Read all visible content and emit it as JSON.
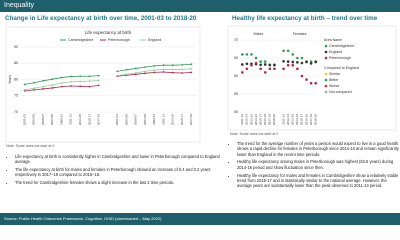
{
  "header": {
    "title": "Inequality"
  },
  "left": {
    "title": "Change in Life expectancy at birth over time, 2001-03 to 2018-20",
    "note": "Note: Scale does not start at 0",
    "bullets": [
      "Life expectancy at birth is consistently higher in Cambridgeshire and lower in Peterborough compared to England average.",
      "The life expectancy at birth for males and females in Peterborough showed an increase of 0.4 and 0.2 years respectively in 2017–19 compared to 2016–18.",
      "The trend for Cambridgeshire females shows a slight increase in the last 2 time periods."
    ]
  },
  "right": {
    "title": "Healthy life expectancy at birth – trend over time",
    "note": "Note: Scale does not start at 0",
    "bullets": [
      "The trend for the average number of years a person would expect to live in a good health shows a rapid decline for females in Peterborough since 2014-16 and remain significantly lower than England in the recent time periods.",
      "Healthy life expectancy among males in Peterborough was highest (63.6 years) during 2014-16 period and show fluctuation since then.",
      "Healthy life expectancy for males and females in Cambridgeshire show a relatively stable trend from 2015-17 and is statistically similar to the national average. However, the average years are substantially lower than the peak observed in 2011-13 period."
    ]
  },
  "footer": {
    "source": "Source: Public Health Outcomes Framework, Cognitive, OHID (downloaded – May 2022)"
  },
  "chart_data": [
    {
      "type": "line",
      "title": "Life expectancy at birth",
      "y_label": "Years",
      "categories": [
        "2001-03",
        "2003-05",
        "2005-07",
        "2007-09",
        "2009-11",
        "2011-13",
        "2013-15",
        "2015-17",
        "2017-19",
        null,
        "2001-03",
        "2003-05",
        "2005-07",
        "2007-09",
        "2009-11",
        "2011-13",
        "2013-15",
        "2015-17",
        "2017-19"
      ],
      "series": [
        {
          "name": "Cambridgeshire",
          "color": "#2e9e5b",
          "values": [
            78.5,
            79.0,
            79.6,
            80.1,
            80.6,
            80.9,
            81.0,
            81.0,
            81.2,
            null,
            82.5,
            83.0,
            83.4,
            83.8,
            84.2,
            84.4,
            84.4,
            84.5,
            84.7
          ]
        },
        {
          "name": "Peterborough",
          "color": "#b22a4a",
          "values": [
            76.5,
            76.8,
            77.1,
            77.4,
            77.8,
            78.0,
            77.9,
            77.8,
            78.2,
            null,
            81.0,
            81.3,
            81.6,
            81.9,
            82.2,
            82.3,
            82.1,
            82.0,
            82.2
          ]
        },
        {
          "name": "England",
          "color": "#8fcf9f",
          "values": [
            76.8,
            77.3,
            77.8,
            78.3,
            78.9,
            79.3,
            79.4,
            79.5,
            79.7,
            null,
            81.2,
            81.6,
            82.0,
            82.5,
            82.9,
            83.1,
            83.1,
            83.1,
            83.3
          ]
        }
      ],
      "ylim": [
        70,
        90
      ],
      "yticks": [
        70,
        75,
        80,
        85,
        90
      ],
      "grid": true
    },
    {
      "type": "dot",
      "panels": [
        "Males",
        "Females"
      ],
      "legend_title": "Area Name",
      "categories": [
        "2011-13",
        "2012-14",
        "2013-15",
        "2014-16",
        "2015-17",
        "2016-18",
        "2017-19",
        "2018-20",
        null,
        "2011-13",
        "2012-14",
        "2013-15",
        "2014-16",
        "2015-17",
        "2016-18",
        "2017-19",
        "2018-20"
      ],
      "series": [
        {
          "name": "Cambridgeshire",
          "color": "#2e9e5b",
          "values": [
            66,
            66,
            66,
            65,
            64,
            64,
            63,
            63,
            null,
            67,
            67,
            66,
            65,
            65,
            64,
            64,
            64
          ]
        },
        {
          "name": "England",
          "color": "#333333",
          "values": [
            63.2,
            63.4,
            63.4,
            63.3,
            63.1,
            63.2,
            63.1,
            63.1,
            null,
            64.1,
            64.0,
            63.9,
            63.8,
            63.6,
            63.9,
            63.5,
            63.9
          ]
        },
        {
          "name": "Peterborough",
          "color": "#b22a4a",
          "values": [
            61,
            62,
            63,
            63.6,
            62,
            61,
            62,
            62,
            null,
            62,
            63,
            63,
            62,
            60,
            59,
            58,
            58
          ]
        }
      ],
      "comparison_legend": {
        "title": "Compared to England",
        "items": [
          {
            "name": "Similar",
            "color": "#f2c230"
          },
          {
            "name": "Better",
            "color": "#2e9e5b"
          },
          {
            "name": "Worse",
            "color": "#c0392b"
          },
          {
            "name": "Not compared",
            "color": "#9aa3ad"
          }
        ]
      },
      "ylim": [
        50,
        70
      ],
      "yticks": [
        50,
        55,
        60,
        65,
        70
      ],
      "grid": true
    }
  ]
}
